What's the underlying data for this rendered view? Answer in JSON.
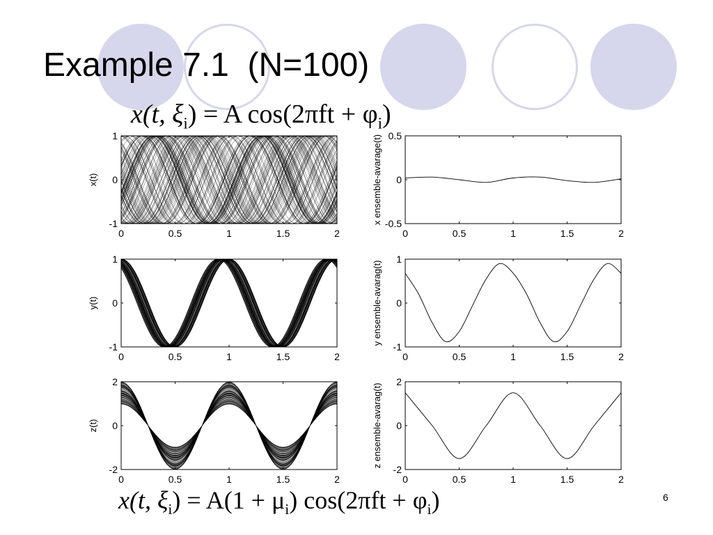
{
  "slide": {
    "title": "Example 7.1  (N=100)",
    "page_number": "6",
    "formula_top": {
      "lhs": "x(t, ξ",
      "lhs_sub": "i",
      "rhs_pre": ") = A cos(2πft + φ",
      "rhs_sub": "i",
      "rhs_post": ")"
    },
    "formula_bottom": {
      "lhs": "x(t, ξ",
      "lhs_sub": "i",
      "mid_pre": ") = A(1 + μ",
      "mid_sub": "i",
      "rhs_pre": ") cos(2πft + φ",
      "rhs_sub": "i",
      "rhs_post": ")"
    },
    "colors": {
      "decor": "#d6d6ec",
      "line": "#000000"
    }
  },
  "chart_data": [
    {
      "id": "x-ensemble",
      "type": "line",
      "ylabel": "x(t)",
      "xlim": [
        0,
        2
      ],
      "ylim": [
        -1,
        1
      ],
      "x_ticks": [
        "0",
        "0.5",
        "1",
        "1.5",
        "2"
      ],
      "y_ticks": [
        "1",
        "0",
        "-1"
      ],
      "model": {
        "amplitude": 1,
        "frequency": 1,
        "phase": "uniform random",
        "amp_variation": 0,
        "realizations": 100
      }
    },
    {
      "id": "x-avg",
      "type": "line",
      "ylabel": "x ensemble-avarage(t)",
      "xlim": [
        0,
        2
      ],
      "ylim": [
        -0.5,
        0.5
      ],
      "x_ticks": [
        "0",
        "0.5",
        "1",
        "1.5",
        "2"
      ],
      "y_ticks": [
        "0.5",
        "0",
        "-0.5"
      ],
      "series": [
        {
          "x": [
            0,
            0.25,
            0.5,
            0.75,
            1,
            1.25,
            1.5,
            1.75,
            2
          ],
          "values": [
            0.02,
            0.03,
            0.0,
            -0.03,
            0.02,
            0.03,
            -0.01,
            -0.03,
            0.01
          ]
        }
      ]
    },
    {
      "id": "y-ensemble",
      "type": "line",
      "ylabel": "y(t)",
      "xlim": [
        0,
        2
      ],
      "ylim": [
        -1,
        1
      ],
      "x_ticks": [
        "0",
        "0.5",
        "1",
        "1.5",
        "2"
      ],
      "y_ticks": [
        "1",
        "0",
        "-1"
      ],
      "model": {
        "amplitude": 1,
        "frequency": 1,
        "phase": "small random around 0.1π",
        "amp_variation": 0,
        "realizations": 100
      }
    },
    {
      "id": "y-avg",
      "type": "line",
      "ylabel": "y ensemble-avarag(t)",
      "xlim": [
        0,
        2
      ],
      "ylim": [
        -1,
        1
      ],
      "x_ticks": [
        "0",
        "0.5",
        "1",
        "1.5",
        "2"
      ],
      "y_ticks": [
        "1",
        "0",
        "-1"
      ],
      "series": [
        {
          "x": [
            0,
            0.125,
            0.25,
            0.375,
            0.5,
            0.625,
            0.75,
            0.875,
            1,
            1.125,
            1.25,
            1.375,
            1.5,
            1.625,
            1.75,
            1.875,
            2
          ],
          "values": [
            0.68,
            0.2,
            -0.45,
            -0.88,
            -0.65,
            -0.05,
            0.55,
            0.9,
            0.68,
            0.2,
            -0.45,
            -0.88,
            -0.65,
            -0.05,
            0.55,
            0.9,
            0.68
          ]
        }
      ]
    },
    {
      "id": "z-ensemble",
      "type": "line",
      "ylabel": "z(t)",
      "xlim": [
        0,
        2
      ],
      "ylim": [
        -2,
        2
      ],
      "x_ticks": [
        "0",
        "0.5",
        "1",
        "1.5",
        "2"
      ],
      "y_ticks": [
        "2",
        "0",
        "-2"
      ],
      "model": {
        "amplitude": 1.5,
        "frequency": 1,
        "phase": 0,
        "amp_variation": 0.35,
        "realizations": 100
      }
    },
    {
      "id": "z-avg",
      "type": "line",
      "ylabel": "z ensemble-avarag(t)",
      "xlim": [
        0,
        2
      ],
      "ylim": [
        -2,
        2
      ],
      "x_ticks": [
        "0",
        "0.5",
        "1",
        "1.5",
        "2"
      ],
      "y_ticks": [
        "2",
        "0",
        "-2"
      ],
      "series": [
        {
          "x": [
            0,
            0.25,
            0.5,
            0.75,
            1,
            1.25,
            1.5,
            1.75,
            2
          ],
          "values": [
            1.5,
            0,
            -1.5,
            0,
            1.5,
            0,
            -1.5,
            0,
            1.5
          ]
        }
      ]
    }
  ]
}
